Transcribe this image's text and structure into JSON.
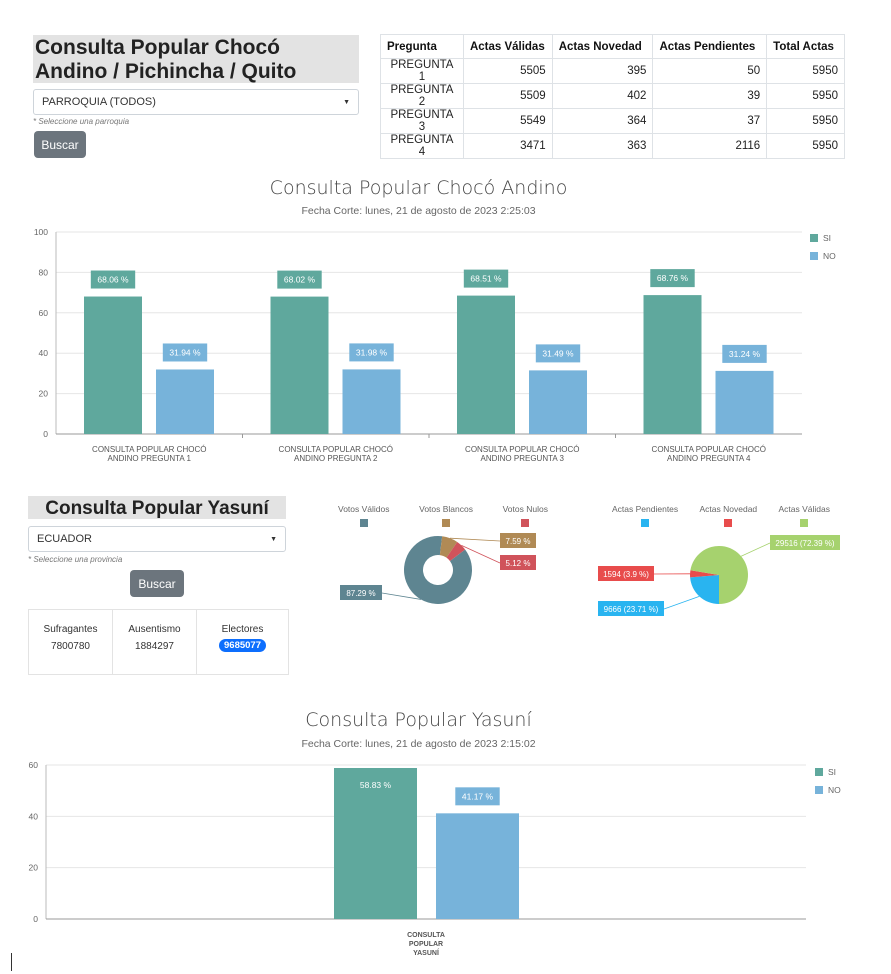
{
  "choco": {
    "title": "Consulta Popular Chocó Andino / Pichincha / Quito",
    "select_value": "PARROQUIA (TODOS)",
    "hint": "* Seleccione una parroquia",
    "button": "Buscar"
  },
  "table": {
    "headers": [
      "Pregunta",
      "Actas Válidas",
      "Actas Novedad",
      "Actas Pendientes",
      "Total Actas"
    ],
    "rows": [
      [
        "PREGUNTA 1",
        "5505",
        "395",
        "50",
        "5950"
      ],
      [
        "PREGUNTA 2",
        "5509",
        "402",
        "39",
        "5950"
      ],
      [
        "PREGUNTA 3",
        "5549",
        "364",
        "37",
        "5950"
      ],
      [
        "PREGUNTA 4",
        "3471",
        "363",
        "2116",
        "5950"
      ]
    ]
  },
  "yasuni": {
    "title": "Consulta Popular Yasuní",
    "select_value": "ECUADOR",
    "hint": "* Seleccione una provincia",
    "button": "Buscar",
    "stats": {
      "sufragantes_label": "Sufragantes",
      "sufragantes": "7800780",
      "ausentismo_label": "Ausentismo",
      "ausentismo": "1884297",
      "electores_label": "Electores",
      "electores": "9685077"
    }
  },
  "colors": {
    "si": "#5fa89d",
    "no": "#77b3da",
    "validos": "#5e8591",
    "blancos": "#b08a55",
    "nulos": "#d0535b",
    "pendientes": "#29b4f0",
    "novedad": "#e84c4c",
    "validas": "#a6d26e"
  },
  "chart_data": [
    {
      "type": "bar",
      "title": "Consulta Popular Chocó Andino",
      "subtitle": "Fecha Corte: lunes, 21 de agosto de 2023 2:25:03",
      "categories": [
        "CONSULTA POPULAR CHOCÓ ANDINO PREGUNTA 1",
        "CONSULTA POPULAR CHOCÓ ANDINO PREGUNTA 2",
        "CONSULTA POPULAR CHOCÓ ANDINO PREGUNTA 3",
        "CONSULTA POPULAR CHOCÓ ANDINO PREGUNTA 4"
      ],
      "series": [
        {
          "name": "SI",
          "values": [
            68.06,
            68.02,
            68.51,
            68.76
          ],
          "labels": [
            "68.06 %",
            "68.02 %",
            "68.51 %",
            "68.76 %"
          ]
        },
        {
          "name": "NO",
          "values": [
            31.94,
            31.98,
            31.49,
            31.24
          ],
          "labels": [
            "31.94 %",
            "31.98 %",
            "31.49 %",
            "31.24 %"
          ]
        }
      ],
      "ylim": [
        0,
        100
      ],
      "yticks": [
        0,
        20,
        40,
        60,
        80,
        100
      ],
      "legend": "top-right",
      "grid": true
    },
    {
      "type": "pie",
      "variant": "donut",
      "legend": [
        "Votos Válidos",
        "Votos Blancos",
        "Votos Nulos"
      ],
      "values": [
        87.29,
        7.59,
        5.12
      ],
      "labels": [
        "87.29 %",
        "7.59 %",
        "5.12 %"
      ]
    },
    {
      "type": "pie",
      "legend": [
        "Actas Pendientes",
        "Actas Novedad",
        "Actas Válidas"
      ],
      "values": [
        9666,
        1594,
        29516
      ],
      "labels": [
        "9666 (23.71 %)",
        "1594 (3.9 %)",
        "29516 (72.39 %)"
      ]
    },
    {
      "type": "bar",
      "title": "Consulta Popular Yasuní",
      "subtitle": "Fecha Corte: lunes, 21 de agosto de 2023 2:15:02",
      "categories": [
        "CONSULTA POPULAR YASUNÍ"
      ],
      "series": [
        {
          "name": "SI",
          "values": [
            58.83
          ],
          "labels": [
            "58.83 %"
          ]
        },
        {
          "name": "NO",
          "values": [
            41.17
          ],
          "labels": [
            "41.17 %"
          ]
        }
      ],
      "ylim": [
        0,
        60
      ],
      "yticks": [
        0,
        20,
        40,
        60
      ],
      "legend": "top-right",
      "grid": true
    }
  ]
}
